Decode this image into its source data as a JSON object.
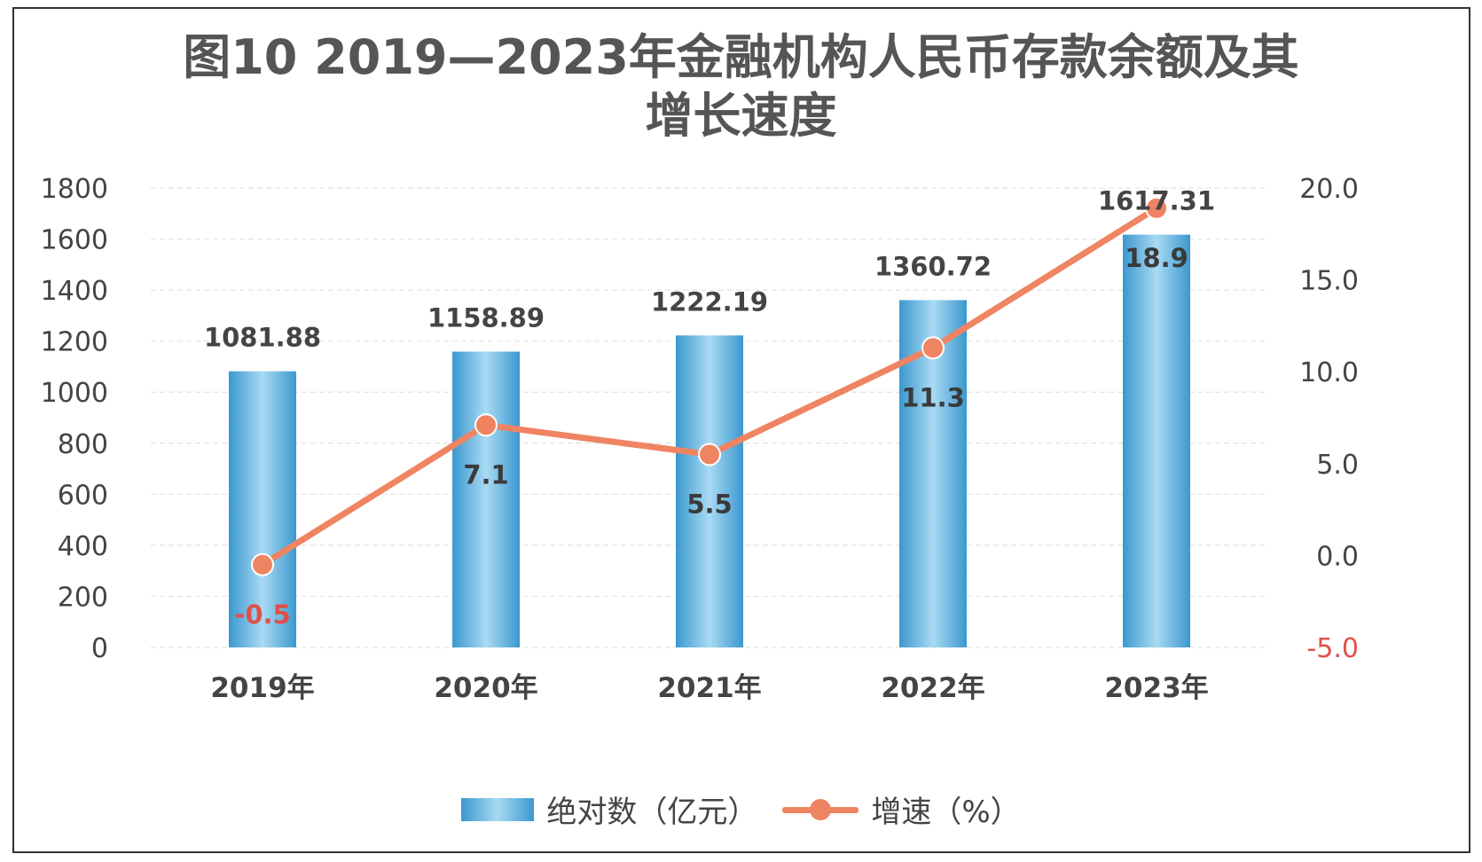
{
  "chart_data": {
    "type": "bar",
    "title_line1": "图10 2019—2023年金融机构人民币存款余额及其",
    "title_line2": "增长速度",
    "categories": [
      "2019年",
      "2020年",
      "2021年",
      "2022年",
      "2023年"
    ],
    "series": [
      {
        "name": "绝对数（亿元）",
        "type": "bar",
        "axis": "left",
        "values": [
          1081.88,
          1158.89,
          1222.19,
          1360.72,
          1617.31
        ],
        "labels": [
          "1081.88",
          "1158.89",
          "1222.19",
          "1360.72",
          "1617.31"
        ],
        "color": "#3b98cf"
      },
      {
        "name": "增速（%）",
        "type": "line",
        "axis": "right",
        "values": [
          -0.5,
          7.1,
          5.5,
          11.3,
          18.9
        ],
        "labels": [
          "-0.5",
          "7.1",
          "5.5",
          "11.3",
          "18.9"
        ],
        "color": "#ef8462"
      }
    ],
    "y_left": {
      "min": 0,
      "max": 1800,
      "ticks": [
        "0",
        "200",
        "400",
        "600",
        "800",
        "1000",
        "1200",
        "1400",
        "1600",
        "1800"
      ]
    },
    "y_right": {
      "min": -5,
      "max": 20,
      "ticks": [
        "-5.0",
        "0.0",
        "5.0",
        "10.0",
        "15.0",
        "20.0"
      ]
    },
    "grid": true,
    "legend_position": "bottom",
    "colors": {
      "negative_label": "#e0504a",
      "text": "#444444"
    }
  }
}
